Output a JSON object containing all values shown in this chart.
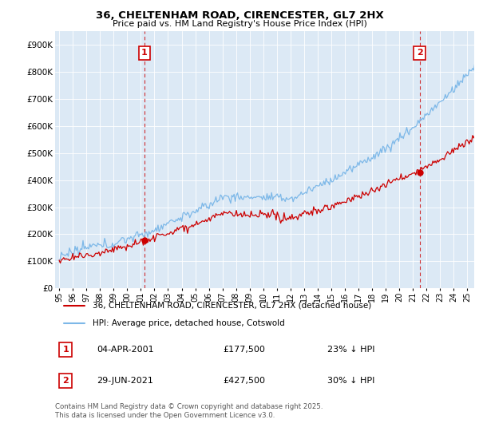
{
  "title": "36, CHELTENHAM ROAD, CIRENCESTER, GL7 2HX",
  "subtitle": "Price paid vs. HM Land Registry's House Price Index (HPI)",
  "ylabel_values": [
    "£0",
    "£100K",
    "£200K",
    "£300K",
    "£400K",
    "£500K",
    "£600K",
    "£700K",
    "£800K",
    "£900K"
  ],
  "ylim": [
    0,
    950000
  ],
  "xlim_start": 1994.7,
  "xlim_end": 2025.5,
  "sale1_date": 2001.26,
  "sale1_price": 177500,
  "sale1_label": "1",
  "sale2_date": 2021.49,
  "sale2_price": 427500,
  "sale2_label": "2",
  "hpi_color": "#7DB8E8",
  "price_color": "#CC0000",
  "vline_color": "#CC0000",
  "annotation_box_color": "#CC0000",
  "plot_bg_color": "#DCE9F5",
  "legend_label_price": "36, CHELTENHAM ROAD, CIRENCESTER, GL7 2HX (detached house)",
  "legend_label_hpi": "HPI: Average price, detached house, Cotswold",
  "annotation1_date": "04-APR-2001",
  "annotation1_price": "£177,500",
  "annotation1_pct": "23% ↓ HPI",
  "annotation2_date": "29-JUN-2021",
  "annotation2_price": "£427,500",
  "annotation2_pct": "30% ↓ HPI",
  "footer": "Contains HM Land Registry data © Crown copyright and database right 2025.\nThis data is licensed under the Open Government Licence v3.0.",
  "background_color": "#FFFFFF",
  "grid_color": "#FFFFFF",
  "xtick_years": [
    1995,
    1996,
    1997,
    1998,
    1999,
    2000,
    2001,
    2002,
    2003,
    2004,
    2005,
    2006,
    2007,
    2008,
    2009,
    2010,
    2011,
    2012,
    2013,
    2014,
    2015,
    2016,
    2017,
    2018,
    2019,
    2020,
    2021,
    2022,
    2023,
    2024,
    2025
  ]
}
